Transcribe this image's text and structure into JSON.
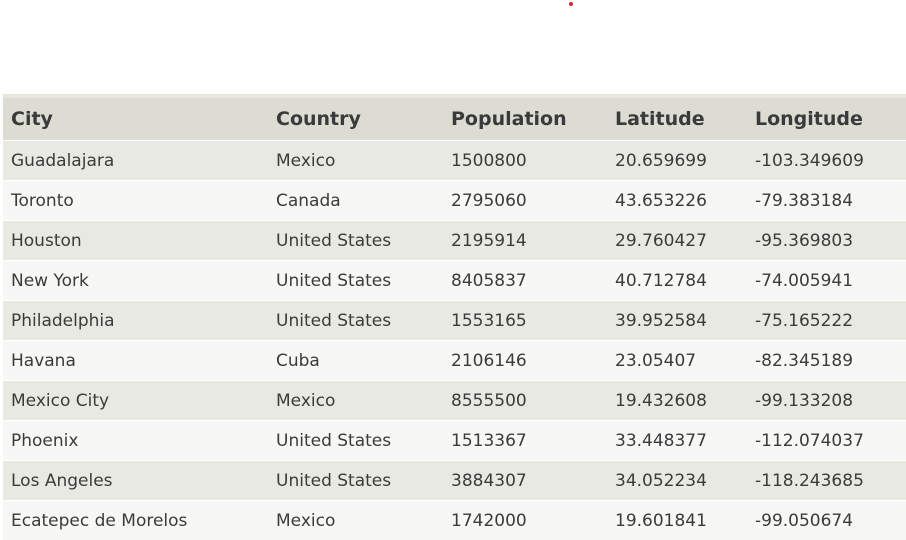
{
  "table": {
    "columns": [
      "City",
      "Country",
      "Population",
      "Latitude",
      "Longitude"
    ],
    "rows": [
      [
        "Guadalajara",
        "Mexico",
        "1500800",
        "20.659699",
        "-103.349609"
      ],
      [
        "Toronto",
        "Canada",
        "2795060",
        "43.653226",
        "-79.383184"
      ],
      [
        "Houston",
        "United States",
        "2195914",
        "29.760427",
        "-95.369803"
      ],
      [
        "New York",
        "United States",
        "8405837",
        "40.712784",
        "-74.005941"
      ],
      [
        "Philadelphia",
        "United States",
        "1553165",
        "39.952584",
        "-75.165222"
      ],
      [
        "Havana",
        "Cuba",
        "2106146",
        "23.05407",
        "-82.345189"
      ],
      [
        "Mexico City",
        "Mexico",
        "8555500",
        "19.432608",
        "-99.133208"
      ],
      [
        "Phoenix",
        "United States",
        "1513367",
        "33.448377",
        "-112.074037"
      ],
      [
        "Los Angeles",
        "United States",
        "3884307",
        "34.052234",
        "-118.243685"
      ],
      [
        "Ecatepec de Morelos",
        "Mexico",
        "1742000",
        "19.601841",
        "-99.050674"
      ]
    ]
  }
}
